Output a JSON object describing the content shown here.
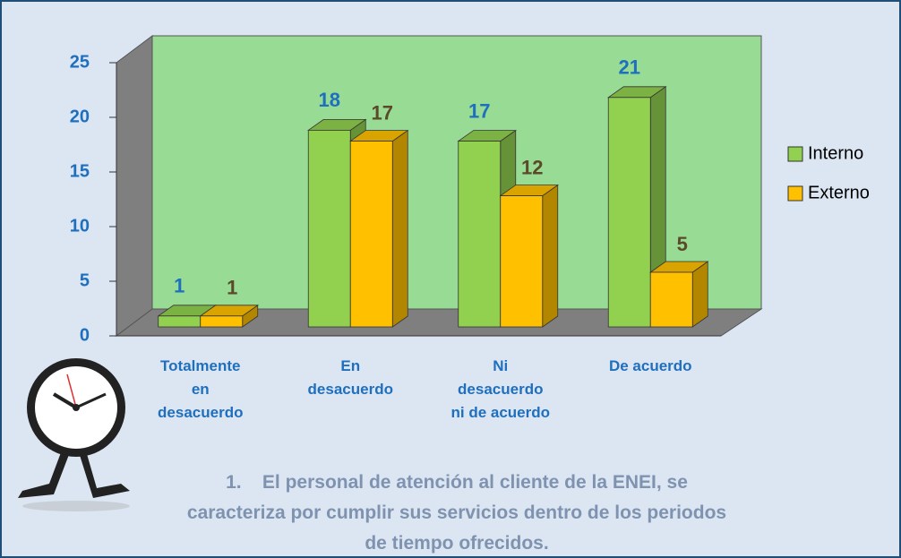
{
  "chart_data": {
    "type": "bar3d",
    "title": [
      "1.    El personal de atención al cliente de la ENEI, se",
      "caracteriza por cumplir sus servicios dentro de los periodos",
      "de tiempo ofrecidos."
    ],
    "categories": [
      "Totalmente\nen\ndesacuerdo",
      "En\ndesacuerdo",
      "Ni\ndesacuerdo\nni de acuerdo",
      "De acuerdo"
    ],
    "series": [
      {
        "name": "Interno",
        "color": "#92d050",
        "values": [
          1,
          18,
          17,
          21
        ]
      },
      {
        "name": "Externo",
        "color": "#ffc000",
        "values": [
          1,
          17,
          12,
          5
        ]
      }
    ],
    "ylim": [
      0,
      25
    ],
    "yticks": [
      0,
      5,
      10,
      15,
      20,
      25
    ],
    "grid": false,
    "legend": "right"
  }
}
